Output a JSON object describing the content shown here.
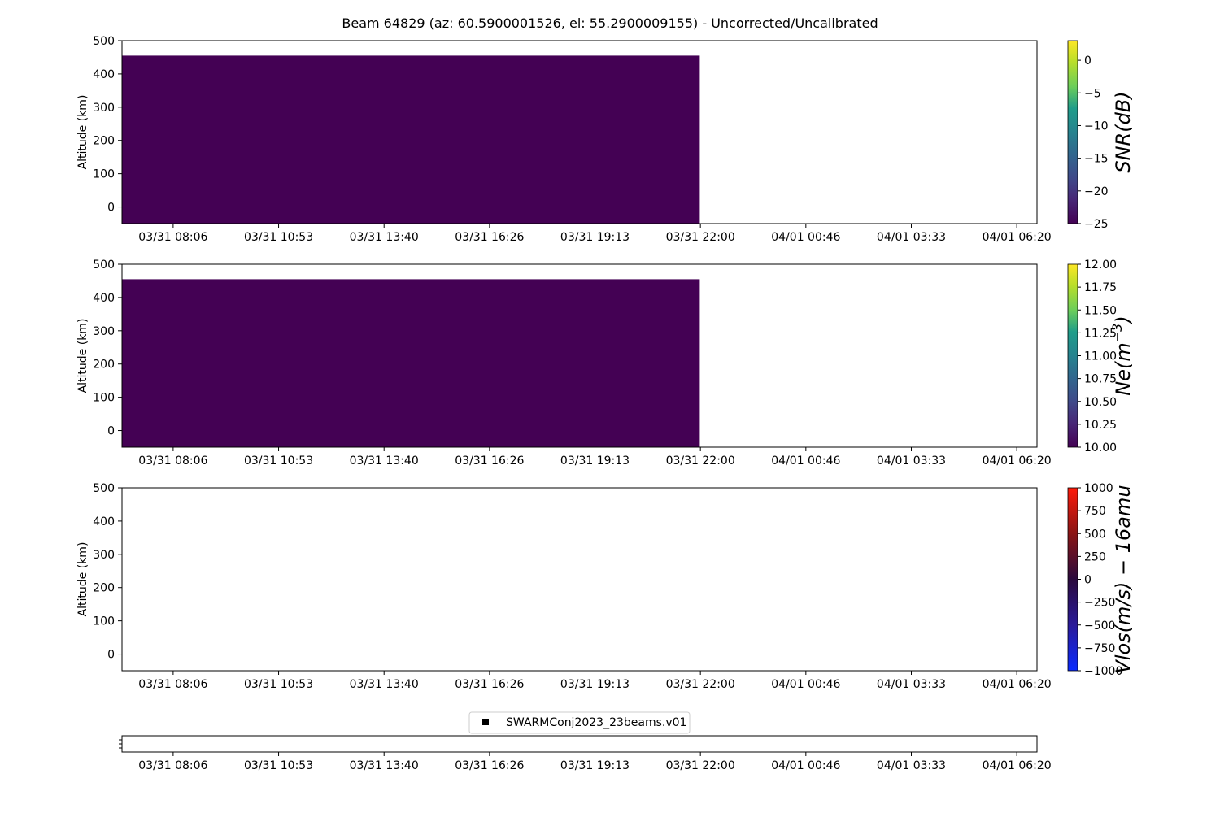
{
  "figure": {
    "title": "Beam 64829 (az: 60.5900001526, el: 55.2900009155) - Uncorrected/Uncalibrated"
  },
  "chart_data": [
    {
      "type": "heatmap",
      "ylabel": "Altitude (km)",
      "ylim": [
        -50,
        500
      ],
      "yticks": [
        0,
        100,
        200,
        300,
        400,
        500
      ],
      "xticks": [
        "03/31 08:06",
        "03/31 10:53",
        "03/31 13:40",
        "03/31 16:26",
        "03/31 19:13",
        "03/31 22:00",
        "04/01 00:46",
        "04/01 03:33",
        "04/01 06:20"
      ],
      "xlim_hours": [
        6.75,
        30.9
      ],
      "data_extent": {
        "x_hours": [
          6.75,
          22.0
        ],
        "altitude_km": [
          -50,
          455
        ]
      },
      "fill_value_level": -25,
      "colorbar": {
        "label": "SNR(dB)",
        "colormap": "viridis",
        "range": [
          -25,
          3
        ],
        "ticks": [
          0,
          -5,
          -10,
          -15,
          -20,
          -25
        ],
        "tick_labels": [
          "0",
          "−5",
          "−10",
          "−15",
          "−20",
          "−25"
        ]
      }
    },
    {
      "type": "heatmap",
      "ylabel": "Altitude (km)",
      "ylim": [
        -50,
        500
      ],
      "yticks": [
        0,
        100,
        200,
        300,
        400,
        500
      ],
      "xticks": [
        "03/31 08:06",
        "03/31 10:53",
        "03/31 13:40",
        "03/31 16:26",
        "03/31 19:13",
        "03/31 22:00",
        "04/01 00:46",
        "04/01 03:33",
        "04/01 06:20"
      ],
      "xlim_hours": [
        6.75,
        30.9
      ],
      "data_extent": {
        "x_hours": [
          6.75,
          22.0
        ],
        "altitude_km": [
          -50,
          455
        ]
      },
      "fill_value_level": 10,
      "colorbar": {
        "label": "Ne(m",
        "label_superscript": "−3",
        "label_suffix": ")",
        "colormap": "viridis",
        "range": [
          10,
          12
        ],
        "ticks": [
          12,
          11.75,
          11.5,
          11.25,
          11,
          10.75,
          10.5,
          10.25,
          10
        ],
        "tick_labels": [
          "12.00",
          "11.75",
          "11.50",
          "11.25",
          "11.00",
          "10.75",
          "10.50",
          "10.25",
          "10.00"
        ]
      }
    },
    {
      "type": "heatmap",
      "ylabel": "Altitude (km)",
      "ylim": [
        -50,
        500
      ],
      "yticks": [
        0,
        100,
        200,
        300,
        400,
        500
      ],
      "xticks": [
        "03/31 08:06",
        "03/31 10:53",
        "03/31 13:40",
        "03/31 16:26",
        "03/31 19:13",
        "03/31 22:00",
        "04/01 00:46",
        "04/01 03:33",
        "04/01 06:20"
      ],
      "xlim_hours": [
        6.75,
        30.9
      ],
      "data_extent": null,
      "colorbar": {
        "label": "Vlos(m/s) − 16amu",
        "colormap": "bwr-dark",
        "range": [
          -1000,
          1000
        ],
        "ticks": [
          1000,
          750,
          500,
          250,
          0,
          -250,
          -500,
          -750,
          -1000
        ],
        "tick_labels": [
          "1000",
          "750",
          "500",
          "250",
          "0",
          "−250",
          "−500",
          "−750",
          "−1000"
        ]
      }
    },
    {
      "type": "scatter",
      "xticks": [
        "03/31 08:06",
        "03/31 10:53",
        "03/31 13:40",
        "03/31 16:26",
        "03/31 19:13",
        "03/31 22:00",
        "04/01 00:46",
        "04/01 03:33",
        "04/01 06:20"
      ],
      "xlim_hours": [
        6.75,
        30.9
      ],
      "legend": {
        "label": "SWARMConj2023_23beams.v01",
        "marker_color": "#000000",
        "placement": "top-center"
      },
      "series": []
    }
  ]
}
